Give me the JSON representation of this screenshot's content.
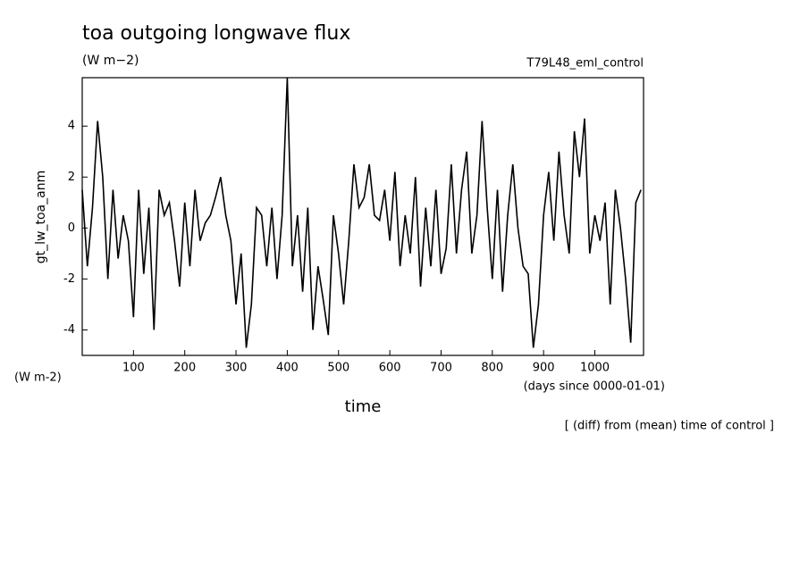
{
  "chart_data": {
    "type": "line",
    "title": "toa outgoing longwave flux",
    "subtitle": "(W m−2)",
    "annotation": "T79L48_eml_control",
    "ylabel": "gt_lw_toa_anm",
    "yunits": "(W m-2)",
    "xlabel": "time",
    "xunits": "(days since 0000-01-01)",
    "note": "[ (diff) from (mean) time of control ]",
    "xlim": [
      0,
      1095
    ],
    "ylim": [
      -5,
      5.9
    ],
    "xticks": [
      100,
      200,
      300,
      400,
      500,
      600,
      700,
      800,
      900,
      1000
    ],
    "yticks": [
      -4,
      -2,
      0,
      2,
      4
    ],
    "color": "#000000",
    "x": [
      0,
      10,
      20,
      30,
      40,
      50,
      60,
      70,
      80,
      90,
      100,
      110,
      120,
      130,
      140,
      150,
      160,
      170,
      180,
      190,
      200,
      210,
      220,
      230,
      240,
      250,
      260,
      270,
      280,
      290,
      300,
      310,
      320,
      330,
      340,
      350,
      360,
      370,
      380,
      390,
      400,
      410,
      420,
      430,
      440,
      450,
      460,
      470,
      480,
      490,
      500,
      510,
      520,
      530,
      540,
      550,
      560,
      570,
      580,
      590,
      600,
      610,
      620,
      630,
      640,
      650,
      660,
      670,
      680,
      690,
      700,
      710,
      720,
      730,
      740,
      750,
      760,
      770,
      780,
      790,
      800,
      810,
      820,
      830,
      840,
      850,
      860,
      870,
      880,
      890,
      900,
      910,
      920,
      930,
      940,
      950,
      960,
      970,
      980,
      990,
      1000,
      1010,
      1020,
      1030,
      1040,
      1050,
      1060,
      1070,
      1080,
      1090
    ],
    "values": [
      1.5,
      -1.5,
      0.8,
      4.2,
      2.0,
      -2.0,
      1.5,
      -1.2,
      0.5,
      -0.5,
      -3.5,
      1.5,
      -1.8,
      0.8,
      -4.0,
      1.5,
      0.5,
      1.0,
      -0.5,
      -2.3,
      1.0,
      -1.5,
      1.5,
      -0.5,
      0.2,
      0.5,
      1.2,
      2.0,
      0.5,
      -0.5,
      -3.0,
      -1.0,
      -4.7,
      -3.0,
      0.8,
      0.5,
      -1.5,
      0.8,
      -2.0,
      0.5,
      5.9,
      -1.5,
      0.5,
      -2.5,
      0.8,
      -4.0,
      -1.5,
      -2.8,
      -4.2,
      0.5,
      -1.0,
      -3.0,
      -0.5,
      2.5,
      0.8,
      1.2,
      2.5,
      0.5,
      0.3,
      1.5,
      -0.5,
      2.2,
      -1.5,
      0.5,
      -1.0,
      2.0,
      -2.3,
      0.8,
      -1.5,
      1.5,
      -1.8,
      -0.8,
      2.5,
      -1.0,
      1.5,
      3.0,
      -1.0,
      0.5,
      4.2,
      0.8,
      -2.0,
      1.5,
      -2.5,
      0.5,
      2.5,
      0.0,
      -1.5,
      -1.8,
      -4.7,
      -3.0,
      0.5,
      2.2,
      -0.5,
      3.0,
      0.5,
      -1.0,
      3.8,
      2.0,
      4.3,
      -1.0,
      0.5,
      -0.5,
      1.0,
      -3.0,
      1.5,
      0.0,
      -2.0,
      -4.5,
      1.0,
      1.5
    ]
  }
}
